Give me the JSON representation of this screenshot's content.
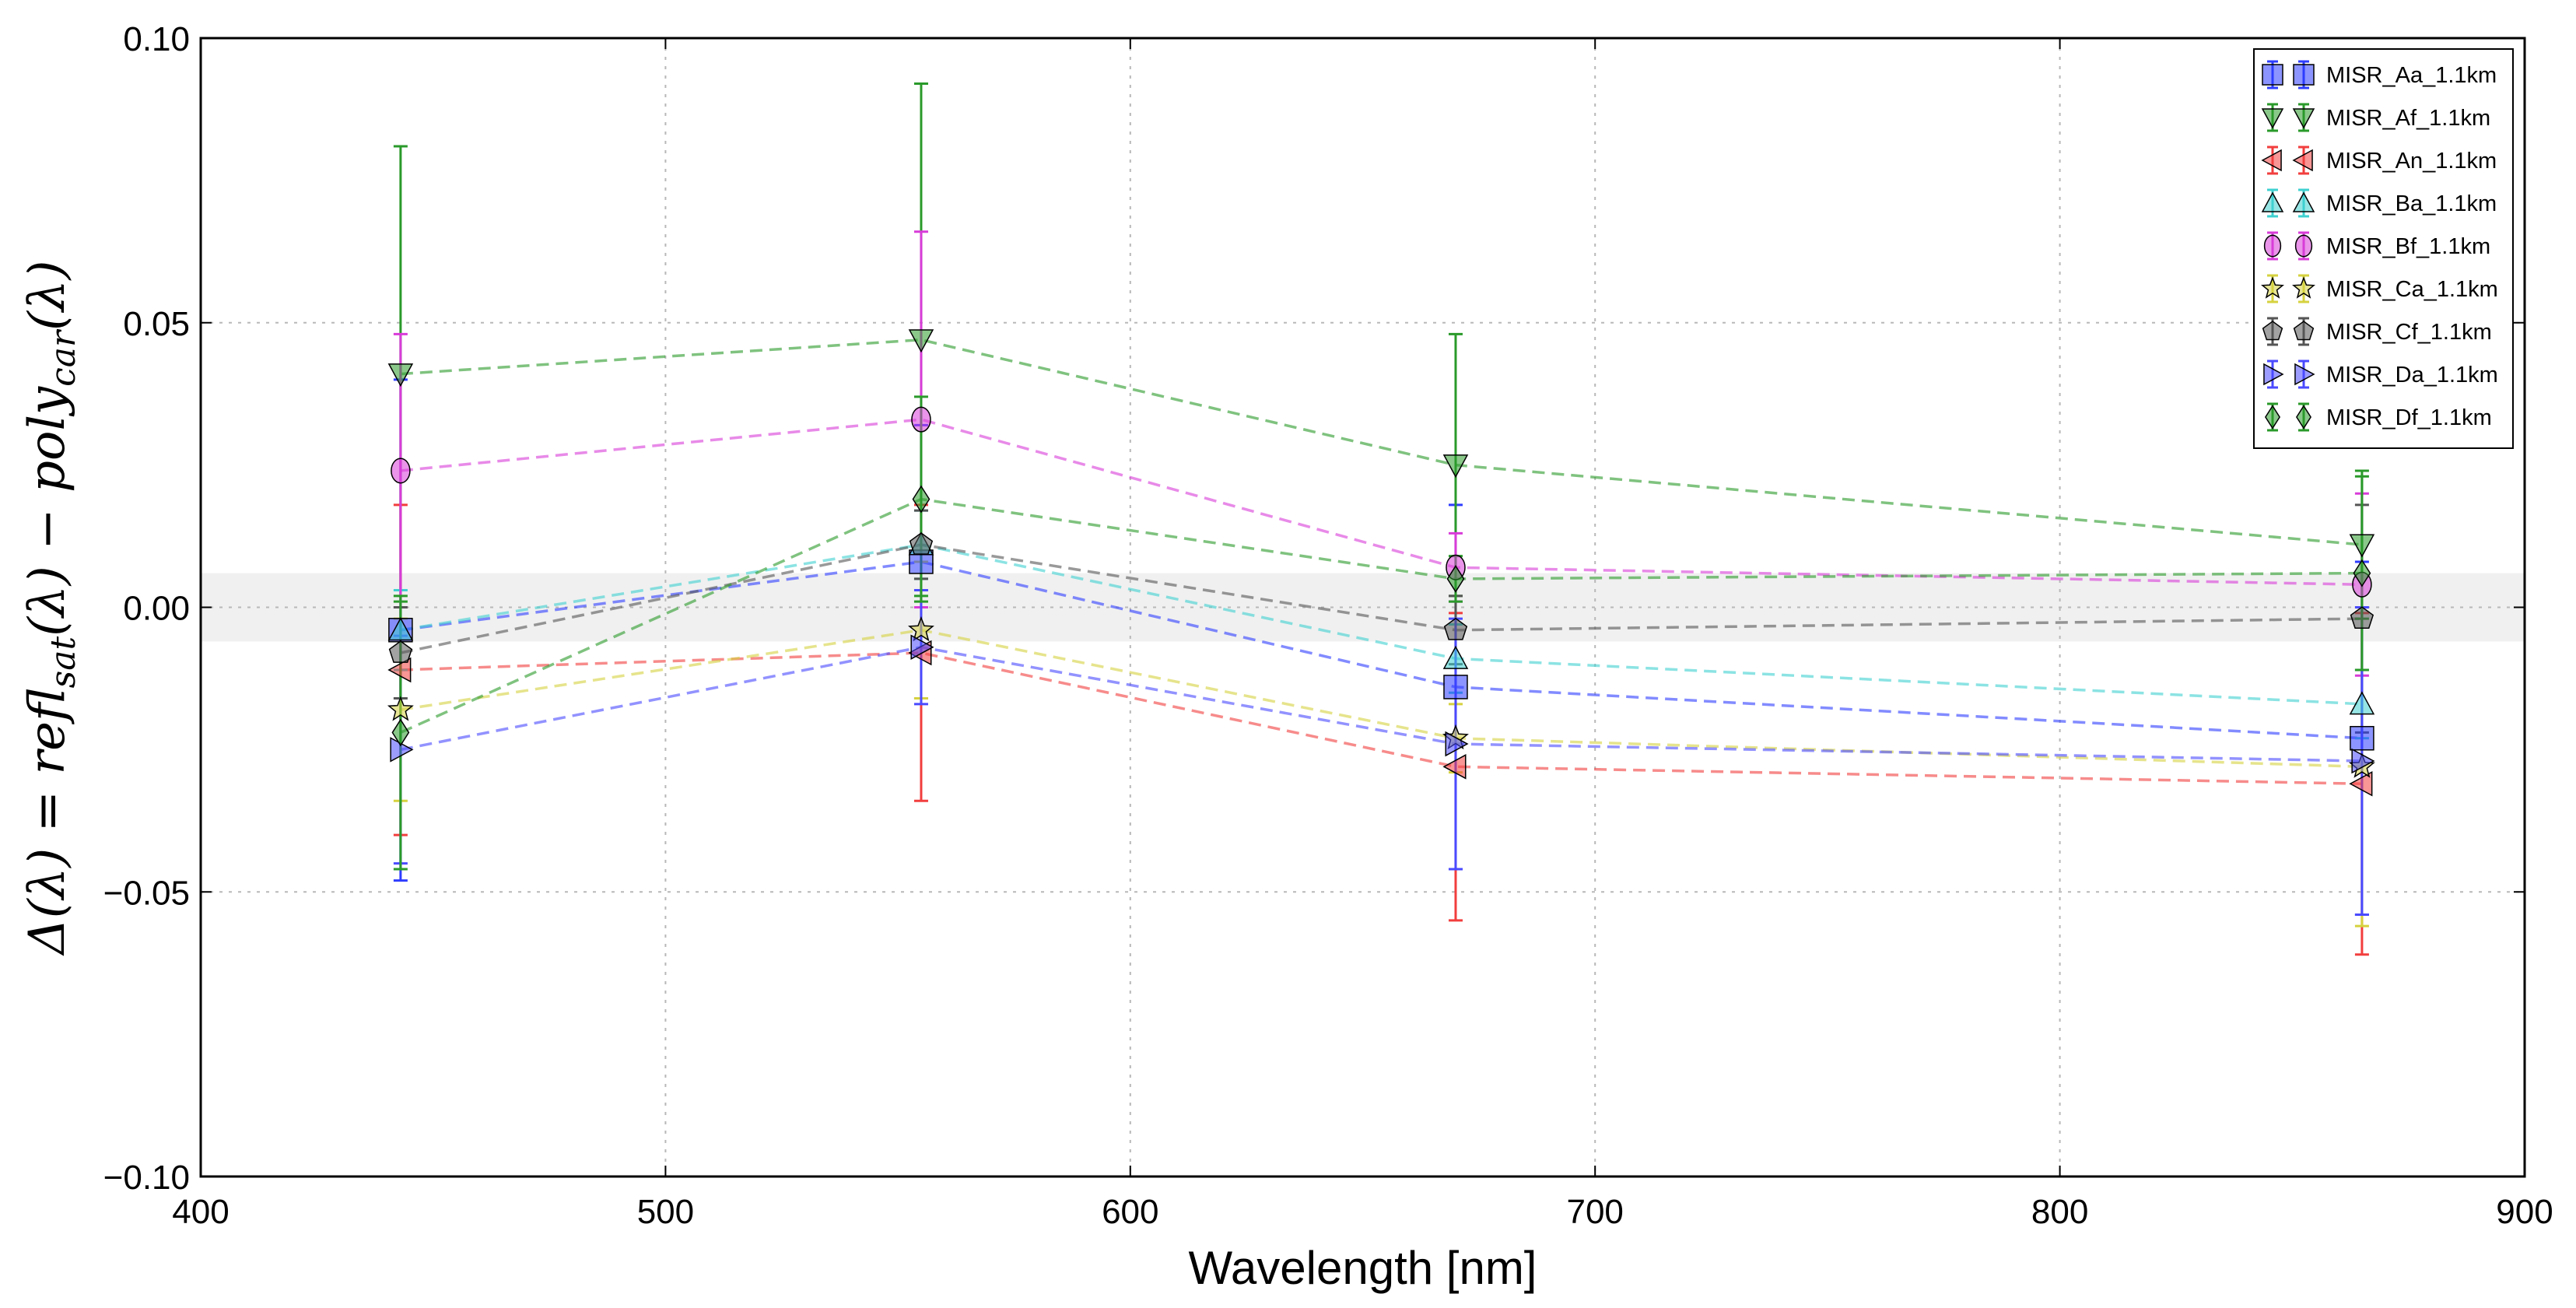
{
  "chart_data": {
    "type": "line",
    "title": "",
    "xlabel": "Wavelength [nm]",
    "ylabel": "Δ(λ)  =  refl_sat(λ)  −  poly_car(λ)",
    "xlim": [
      400,
      900
    ],
    "ylim": [
      -0.1,
      0.1
    ],
    "x_ticks": [
      400,
      500,
      600,
      700,
      800,
      900
    ],
    "y_ticks": [
      -0.1,
      -0.05,
      0.0,
      0.05,
      0.1
    ],
    "x_tick_labels": [
      "400",
      "500",
      "600",
      "700",
      "800",
      "900"
    ],
    "y_tick_labels": [
      "−0.10",
      "−0.05",
      "0.00",
      "0.05",
      "0.10"
    ],
    "grid": true,
    "legend_position": "top-right",
    "band": [
      -0.006,
      0.006
    ],
    "x": [
      443,
      555,
      670,
      865
    ],
    "series": [
      {
        "name": "MISR_Aa_1.1km",
        "color": "#2e3dff",
        "marker": "square",
        "values": [
          -0.004,
          0.008,
          -0.014,
          -0.023
        ],
        "errors": [
          0.044,
          0.024,
          0.032,
          0.031
        ]
      },
      {
        "name": "MISR_Af_1.1km",
        "color": "#2a9a2a",
        "marker": "triangle-down",
        "values": [
          0.041,
          0.047,
          0.025,
          0.011
        ],
        "errors": [
          0.04,
          0.045,
          0.023,
          0.013
        ]
      },
      {
        "name": "MISR_An_1.1km",
        "color": "#f23e3e",
        "marker": "triangle-left",
        "values": [
          -0.011,
          -0.008,
          -0.028,
          -0.031
        ],
        "errors": [
          0.029,
          0.026,
          0.027,
          0.03
        ]
      },
      {
        "name": "MISR_Ba_1.1km",
        "color": "#3fd0d0",
        "marker": "triangle-up",
        "values": [
          -0.004,
          0.011,
          -0.009,
          -0.017
        ],
        "errors": [
          0.007,
          0.006,
          0.006,
          0.006
        ]
      },
      {
        "name": "MISR_Bf_1.1km",
        "color": "#d83cd8",
        "marker": "ellipse",
        "values": [
          0.024,
          0.033,
          0.007,
          0.004
        ],
        "errors": [
          0.024,
          0.033,
          0.006,
          0.016
        ]
      },
      {
        "name": "MISR_Ca_1.1km",
        "color": "#d6d23f",
        "marker": "star",
        "values": [
          -0.018,
          -0.004,
          -0.023,
          -0.028
        ],
        "errors": [
          0.016,
          0.012,
          0.006,
          0.028
        ]
      },
      {
        "name": "MISR_Cf_1.1km",
        "color": "#555555",
        "marker": "pentagon",
        "values": [
          -0.008,
          0.011,
          -0.004,
          -0.002
        ],
        "errors": [
          0.008,
          0.006,
          0.006,
          0.02
        ]
      },
      {
        "name": "MISR_Da_1.1km",
        "color": "#4a4aff",
        "marker": "triangle-right",
        "values": [
          -0.025,
          -0.007,
          -0.024,
          -0.027
        ],
        "errors": [
          0.02,
          0.01,
          0.022,
          0.027
        ]
      },
      {
        "name": "MISR_Df_1.1km",
        "color": "#2a9a2a",
        "marker": "diamond",
        "values": [
          -0.022,
          0.019,
          0.005,
          0.006
        ],
        "errors": [
          0.024,
          0.018,
          0.004,
          0.017
        ]
      }
    ]
  }
}
